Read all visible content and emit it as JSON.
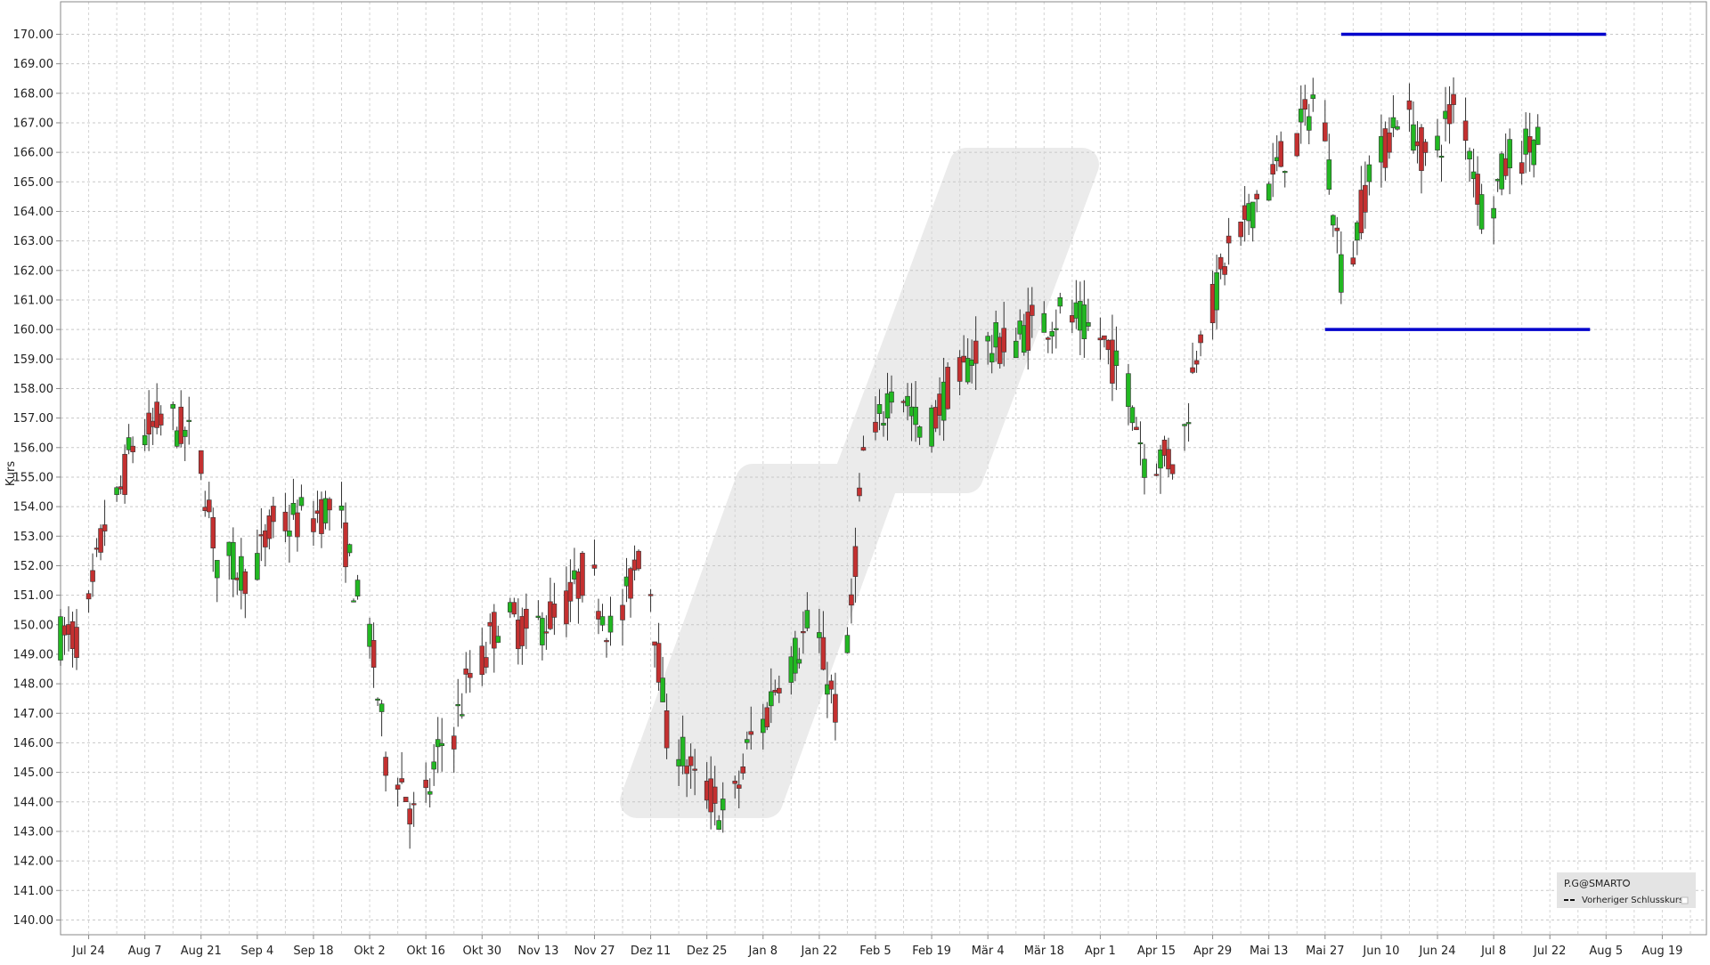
{
  "chart_data": {
    "type": "candlestick",
    "ylabel": "Kurs",
    "ylim": [
      139.5,
      171.1
    ],
    "yticks": [
      140,
      141,
      142,
      143,
      144,
      145,
      146,
      147,
      148,
      149,
      150,
      151,
      152,
      153,
      154,
      155,
      156,
      157,
      158,
      159,
      160,
      161,
      162,
      163,
      164,
      165,
      166,
      167,
      168,
      169,
      170
    ],
    "xlim": [
      "2023-07-17",
      "2024-08-30"
    ],
    "xticks": [
      {
        "date": "2023-07-24",
        "label": "Jul 24"
      },
      {
        "date": "2023-08-07",
        "label": "Aug 7"
      },
      {
        "date": "2023-08-21",
        "label": "Aug 21"
      },
      {
        "date": "2023-09-04",
        "label": "Sep 4"
      },
      {
        "date": "2023-09-18",
        "label": "Sep 18"
      },
      {
        "date": "2023-10-02",
        "label": "Okt 2"
      },
      {
        "date": "2023-10-16",
        "label": "Okt 16"
      },
      {
        "date": "2023-10-30",
        "label": "Okt 30"
      },
      {
        "date": "2023-11-13",
        "label": "Nov 13"
      },
      {
        "date": "2023-11-27",
        "label": "Nov 27"
      },
      {
        "date": "2023-12-11",
        "label": "Dez 11"
      },
      {
        "date": "2023-12-25",
        "label": "Dez 25"
      },
      {
        "date": "2024-01-08",
        "label": "Jan 8"
      },
      {
        "date": "2024-01-22",
        "label": "Jan 22"
      },
      {
        "date": "2024-02-05",
        "label": "Feb 5"
      },
      {
        "date": "2024-02-19",
        "label": "Feb 19"
      },
      {
        "date": "2024-03-04",
        "label": "Mär 4"
      },
      {
        "date": "2024-03-18",
        "label": "Mär 18"
      },
      {
        "date": "2024-04-01",
        "label": "Apr 1"
      },
      {
        "date": "2024-04-15",
        "label": "Apr 15"
      },
      {
        "date": "2024-04-29",
        "label": "Apr 29"
      },
      {
        "date": "2024-05-13",
        "label": "Mai 13"
      },
      {
        "date": "2024-05-27",
        "label": "Mai 27"
      },
      {
        "date": "2024-06-10",
        "label": "Jun 10"
      },
      {
        "date": "2024-06-24",
        "label": "Jun 24"
      },
      {
        "date": "2024-07-08",
        "label": "Jul 8"
      },
      {
        "date": "2024-07-22",
        "label": "Jul 22"
      },
      {
        "date": "2024-08-05",
        "label": "Aug 5"
      },
      {
        "date": "2024-08-19",
        "label": "Aug 19"
      }
    ],
    "grid": true,
    "colors": {
      "up": "#22b822",
      "down": "#c43030",
      "wick": "#333333",
      "level": "#0000cc",
      "watermark": "#ebebeb"
    },
    "levels": [
      {
        "value": 170.0,
        "from": "2024-05-31",
        "to": "2024-08-05"
      },
      {
        "value": 160.0,
        "from": "2024-05-27",
        "to": "2024-08-01"
      }
    ],
    "legend": {
      "position": "bottom-right",
      "symbol": "P.G@SMART",
      "entries": [
        "Vorheriger Schlusskurs"
      ]
    },
    "series": [
      {
        "dates": [
          "2023-07-17",
          "2023-07-24",
          "2023-07-31",
          "2023-08-07",
          "2023-08-14",
          "2023-08-21",
          "2023-08-28",
          "2023-09-04",
          "2023-09-11",
          "2023-09-18",
          "2023-09-25",
          "2023-10-02",
          "2023-10-09",
          "2023-10-16",
          "2023-10-23",
          "2023-10-30",
          "2023-11-06",
          "2023-11-13",
          "2023-11-20",
          "2023-11-27",
          "2023-12-04",
          "2023-12-11",
          "2023-12-18",
          "2023-12-25",
          "2024-01-01",
          "2024-01-08",
          "2024-01-15",
          "2024-01-22",
          "2024-01-29",
          "2024-02-05",
          "2024-02-12",
          "2024-02-19",
          "2024-02-26",
          "2024-03-04",
          "2024-03-11",
          "2024-03-18",
          "2024-03-25",
          "2024-04-01",
          "2024-04-08",
          "2024-04-15",
          "2024-04-22",
          "2024-04-29",
          "2024-05-06",
          "2024-05-13",
          "2024-05-20",
          "2024-05-27",
          "2024-06-03",
          "2024-06-10",
          "2024-06-17",
          "2024-06-24",
          "2024-07-01",
          "2024-07-08",
          "2024-07-15"
        ],
        "close": [
          149.6,
          153.5,
          156.2,
          157.0,
          156.3,
          152.2,
          151.8,
          153.4,
          153.6,
          154.0,
          150.8,
          145.5,
          143.5,
          146.0,
          148.3,
          150.2,
          149.8,
          150.4,
          151.7,
          149.8,
          152.5,
          146.3,
          144.6,
          143.6,
          146.2,
          148.4,
          149.9,
          147.2,
          155.8,
          158.2,
          156.5,
          158.0,
          159.4,
          159.5,
          160.2,
          160.5,
          160.0,
          158.7,
          155.7,
          155.6,
          160.3,
          162.7,
          164.6,
          166.0,
          167.8,
          162.0,
          165.4,
          167.4,
          165.8,
          167.6,
          164.2,
          165.9,
          166.5
        ]
      }
    ]
  }
}
